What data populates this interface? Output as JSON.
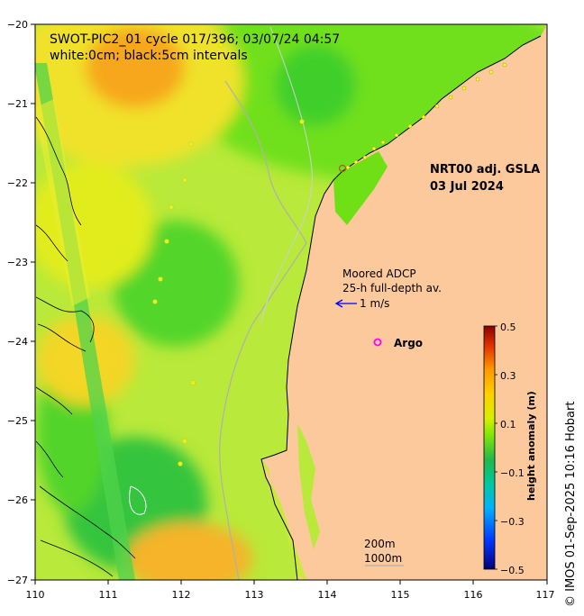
{
  "title_line1": "SWOT-PIC2_01 cycle 017/396; 03/07/24 04:57",
  "title_line2": "white:0cm; black:5cm intervals",
  "product_line1": "NRT00 adj. GSLA",
  "product_line2": "03 Jul 2024",
  "adcp_line1": "Moored ADCP",
  "adcp_line2": "25-h full-depth av.",
  "adcp_scale": "1 m/s",
  "argo_symbol": "o",
  "argo_label": "Argo",
  "isobath_200": "200m",
  "isobath_1000": "1000m",
  "colorbar": {
    "title": "height anomaly (m)",
    "ticks": [
      "0.5",
      "0.3",
      "0.1",
      "−0.1",
      "−0.3",
      "−0.5"
    ]
  },
  "credit": "© IMOS 01-Sep-2025 10:16 Hobart",
  "x_ticks": [
    "110",
    "111",
    "112",
    "113",
    "114",
    "115",
    "116",
    "117"
  ],
  "y_ticks": [
    "−20",
    "−21",
    "−22",
    "−23",
    "−24",
    "−25",
    "−26",
    "−27"
  ],
  "colors": {
    "land": "#fbc99b",
    "ocean_base": "#b9e93a",
    "argo": "#ff00ff",
    "arrow": "#0000ff"
  }
}
